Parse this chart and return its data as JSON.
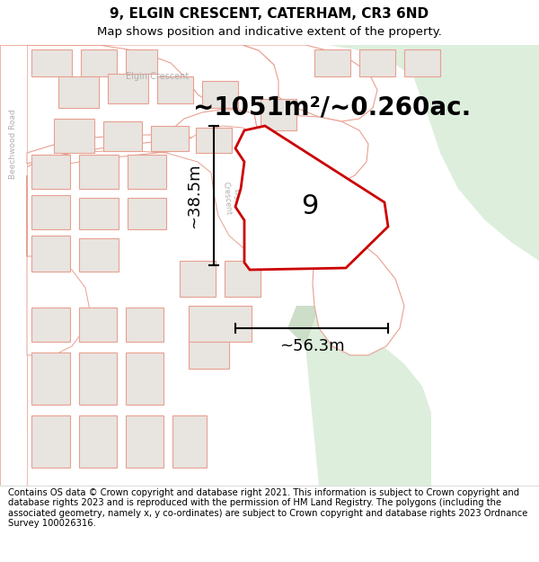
{
  "title": "9, ELGIN CRESCENT, CATERHAM, CR3 6ND",
  "subtitle": "Map shows position and indicative extent of the property.",
  "footer": "Contains OS data © Crown copyright and database right 2021. This information is subject to Crown copyright and database rights 2023 and is reproduced with the permission of HM Land Registry. The polygons (including the associated geometry, namely x, y co-ordinates) are subject to Crown copyright and database rights 2023 Ordnance Survey 100026316.",
  "area_label": "~1051m²/~0.260ac.",
  "number_label": "9",
  "dim_height": "~38.5m",
  "dim_width": "~56.3m",
  "bg_color": "#ffffff",
  "green_area_color": "#ddeedd",
  "green_area_color2": "#ccddc8",
  "building_fill": "#e8e4e0",
  "building_edge": "#e8a090",
  "road_line_color": "#e8a090",
  "road_fill": "#ffffff",
  "plot_edge": "#cc0000",
  "plot_linewidth": 2.0,
  "title_fontsize": 11,
  "subtitle_fontsize": 9.5,
  "footer_fontsize": 7.2,
  "area_fontsize": 20,
  "number_fontsize": 22,
  "dim_fontsize": 13,
  "street_label_elgin_crescent": "Elgin Crescent",
  "street_label_beechwood_road": "Beechwood Road",
  "road_label_color": "#b0b0b0"
}
